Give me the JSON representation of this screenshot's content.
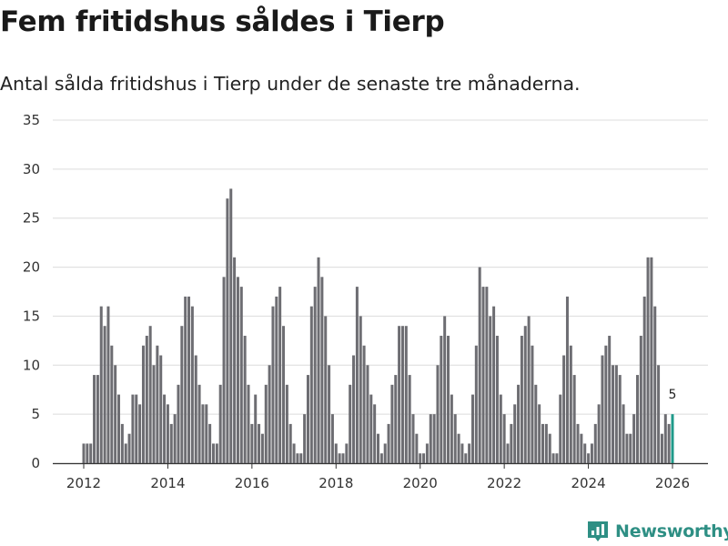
{
  "title": "Fem fritidshus såldes i Tierp",
  "subtitle": "Antal sålda fritidshus i Tierp under de senaste tre månaderna.",
  "brand": {
    "name": "Newsworthy",
    "icon": "newsworthy-logo-icon",
    "color": "#2e8f84"
  },
  "chart_data": {
    "type": "bar",
    "x_start": {
      "year": 2011,
      "month": 12
    },
    "frequency": "monthly",
    "ylim": [
      0,
      35
    ],
    "yticks": [
      0,
      5,
      10,
      15,
      20,
      25,
      30,
      35
    ],
    "xtick_labels": [
      "2012",
      "2014",
      "2016",
      "2018",
      "2020",
      "2022",
      "2024",
      "2026"
    ],
    "xtick_years": [
      2012,
      2014,
      2016,
      2018,
      2020,
      2022,
      2024,
      2026
    ],
    "bar_color": "#6d6d72",
    "highlight_color": "#1f9a8a",
    "highlight_label": "5",
    "values": [
      2,
      2,
      2,
      9,
      9,
      16,
      14,
      16,
      12,
      10,
      7,
      4,
      2,
      3,
      7,
      7,
      6,
      12,
      13,
      14,
      10,
      12,
      11,
      7,
      6,
      4,
      5,
      8,
      14,
      17,
      17,
      16,
      11,
      8,
      6,
      6,
      4,
      2,
      2,
      8,
      19,
      27,
      28,
      21,
      19,
      18,
      13,
      8,
      4,
      7,
      4,
      3,
      8,
      10,
      16,
      17,
      18,
      14,
      8,
      4,
      2,
      1,
      1,
      5,
      9,
      16,
      18,
      21,
      19,
      15,
      10,
      5,
      2,
      1,
      1,
      2,
      8,
      11,
      18,
      15,
      12,
      10,
      7,
      6,
      3,
      1,
      2,
      4,
      8,
      9,
      14,
      14,
      14,
      9,
      5,
      3,
      1,
      1,
      2,
      5,
      5,
      10,
      13,
      15,
      13,
      7,
      5,
      3,
      2,
      1,
      2,
      7,
      12,
      20,
      18,
      18,
      15,
      16,
      13,
      7,
      5,
      2,
      4,
      6,
      8,
      13,
      14,
      15,
      12,
      8,
      6,
      4,
      4,
      3,
      1,
      1,
      7,
      11,
      17,
      12,
      9,
      4,
      3,
      2,
      1,
      2,
      4,
      6,
      11,
      12,
      13,
      10,
      10,
      9,
      6,
      3,
      3,
      5,
      9,
      13,
      17,
      21,
      21,
      16,
      10,
      3,
      5,
      4,
      5
    ]
  }
}
